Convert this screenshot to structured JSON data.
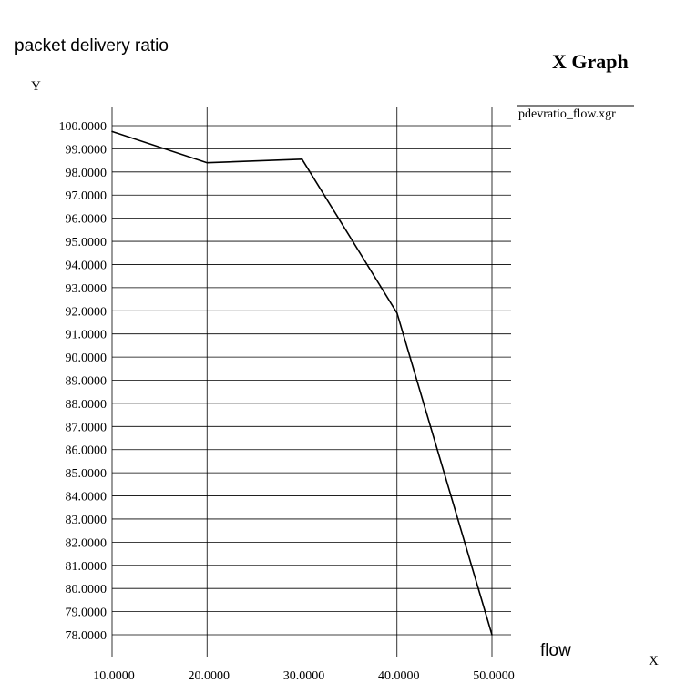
{
  "window": {
    "title": "X Graph"
  },
  "chart_data": {
    "type": "line",
    "title": "X Graph",
    "ylabel": "packet delivery ratio",
    "xlabel": "flow",
    "y_axis_letter": "Y",
    "x_axis_letter": "X",
    "grid": true,
    "legend_position": "right",
    "xlim": [
      10,
      50
    ],
    "ylim": [
      78,
      100
    ],
    "x_ticks": [
      "10.0000",
      "20.0000",
      "30.0000",
      "40.0000",
      "50.0000"
    ],
    "y_ticks": [
      "100.0000",
      "99.0000",
      "98.0000",
      "97.0000",
      "96.0000",
      "95.0000",
      "94.0000",
      "93.0000",
      "92.0000",
      "91.0000",
      "90.0000",
      "89.0000",
      "88.0000",
      "87.0000",
      "86.0000",
      "85.0000",
      "84.0000",
      "83.0000",
      "82.0000",
      "81.0000",
      "80.0000",
      "79.0000",
      "78.0000"
    ],
    "series": [
      {
        "name": "pdevratio_flow.xgr",
        "color": "#000000",
        "x": [
          10,
          20,
          30,
          40,
          50
        ],
        "y": [
          99.75,
          98.4,
          98.55,
          91.9,
          78.0
        ]
      }
    ]
  }
}
